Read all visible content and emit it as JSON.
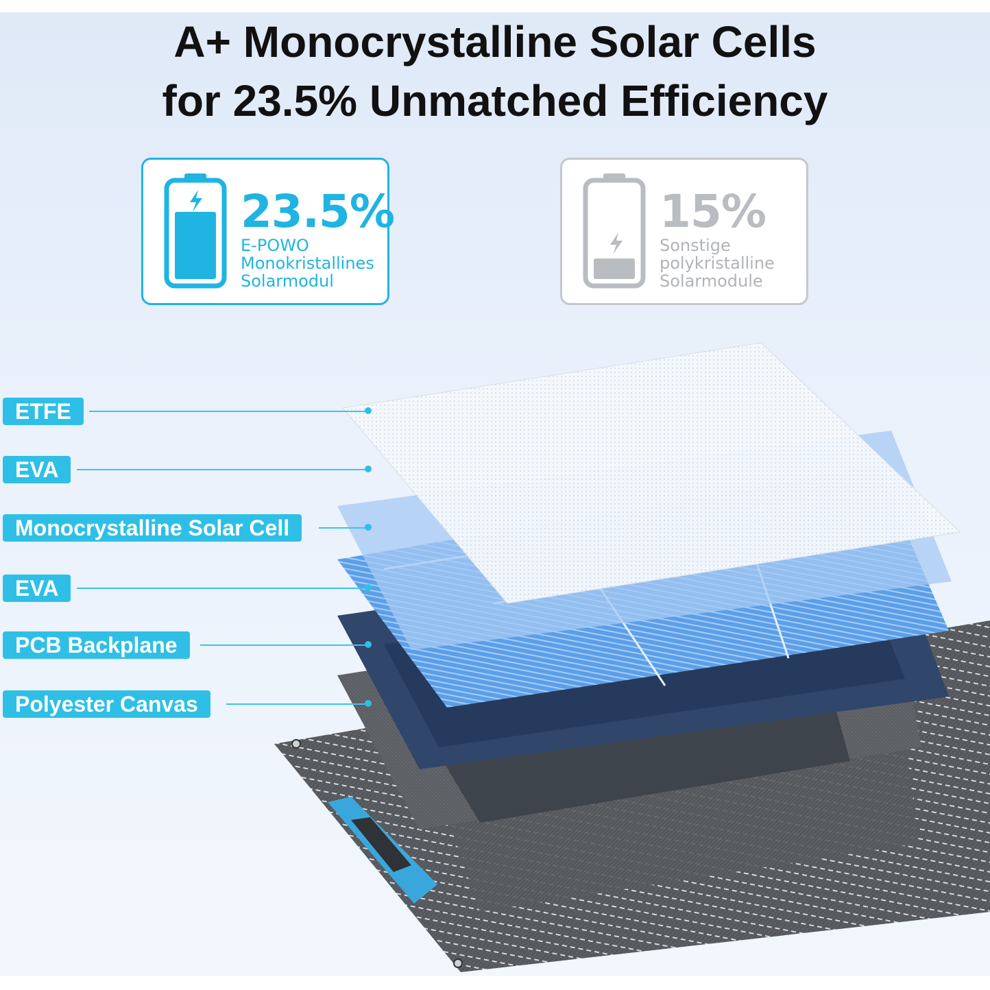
{
  "headline": {
    "line1": "A+ Monocrystalline Solar Cells",
    "line2": "for 23.5% Unmatched Efficiency"
  },
  "comparison": {
    "ours": {
      "percent": "23.5%",
      "efficiency": 23.5,
      "line1": "E-POWO",
      "line2": "Monokristallines",
      "line3": "Solarmodul",
      "icon": "battery-charging-full-icon",
      "color": "#1fb4e2"
    },
    "other": {
      "percent": "15%",
      "efficiency": 15,
      "line1": "Sonstige",
      "line2": "polykristalline",
      "line3": "Solarmodule",
      "icon": "battery-charging-low-icon",
      "color": "#b9bcc1"
    }
  },
  "layers": [
    {
      "label": "ETFE"
    },
    {
      "label": "EVA"
    },
    {
      "label": "Monocrystalline Solar Cell"
    },
    {
      "label": "EVA"
    },
    {
      "label": "PCB Backplane"
    },
    {
      "label": "Polyester Canvas"
    }
  ],
  "colors": {
    "accent": "#2fbfe6",
    "panel_blue": "#5a9be6",
    "canvas_gray": "#4a4d52",
    "handle_blue": "#3aa7dc"
  }
}
